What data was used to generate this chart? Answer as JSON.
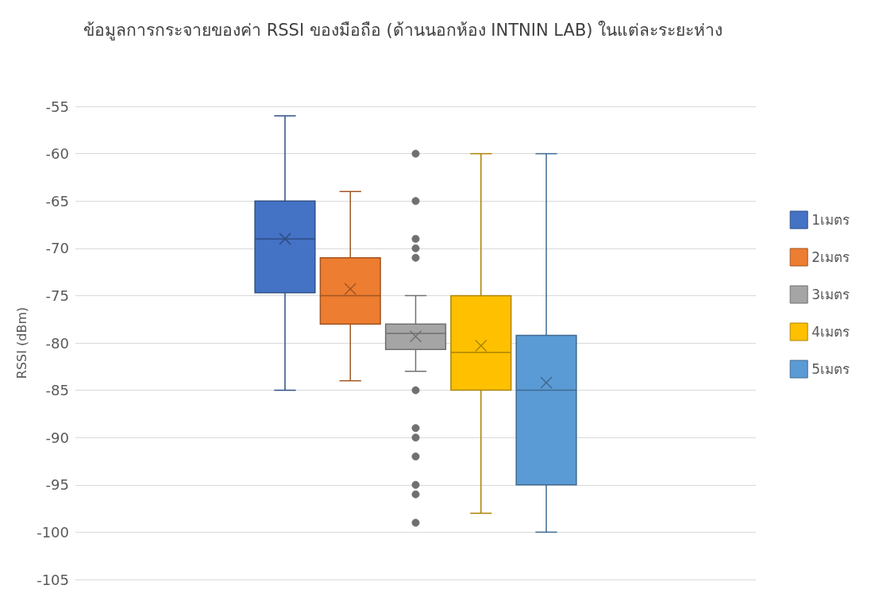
{
  "chart_data": {
    "type": "box",
    "title": "ข้อมูลการกระจายของค่า RSSI ของมือถือ (ด้านนอกห้อง INTNIN LAB) ในแต่ละระยะห่าง",
    "ylabel": "RSSI (dBm)",
    "categories": [
      null
    ],
    "series": [
      {
        "name": "1เมตร",
        "color": "#4472c4",
        "boxes": [
          {
            "low": -85,
            "q1": -74.7,
            "median": -69,
            "q3": -65,
            "high": -56,
            "mean": -69
          }
        ]
      },
      {
        "name": "2เมตร",
        "color": "#ed7d31",
        "boxes": [
          {
            "low": -84,
            "q1": -78,
            "median": -75,
            "q3": -71,
            "high": -64,
            "mean": -74.3
          }
        ]
      },
      {
        "name": "3เมตร",
        "color": "#a5a5a5",
        "boxes": [
          {
            "low": -83,
            "q1": -80.7,
            "median": -79,
            "q3": -78,
            "high": -75,
            "mean": -79.3,
            "outliers": [
              -60,
              -65,
              -69,
              -70,
              -71,
              -85,
              -89,
              -90,
              -92,
              -95,
              -96,
              -99
            ]
          }
        ]
      },
      {
        "name": "4เมตร",
        "color": "#ffc000",
        "boxes": [
          {
            "low": -98,
            "q1": -85,
            "median": -81,
            "q3": -75,
            "high": -60,
            "mean": -80.3
          }
        ]
      },
      {
        "name": "5เมตร",
        "color": "#5b9bd5",
        "boxes": [
          {
            "low": -100,
            "q1": -95,
            "median": -85,
            "q3": -79.2,
            "high": -60,
            "mean": -84.2
          }
        ]
      }
    ],
    "ylim": [
      -105,
      -55
    ],
    "yticks": [
      -105,
      -100,
      -95,
      -90,
      -85,
      -80,
      -75,
      -70,
      -65,
      -60,
      -55
    ],
    "grid": "y",
    "legend": "right"
  }
}
